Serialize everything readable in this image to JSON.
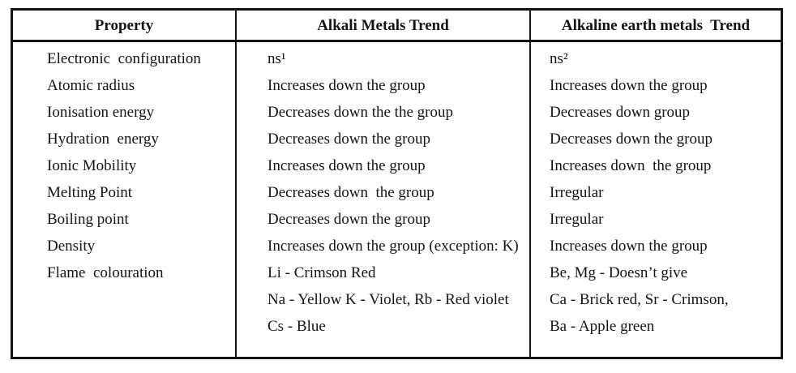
{
  "table": {
    "headers": [
      "Property",
      "Alkali Metals Trend",
      "Alkaline earth metals  Trend"
    ],
    "rows": [
      {
        "property": "Electronic  configuration",
        "alkali": [
          "ns¹"
        ],
        "alkaline": [
          "ns²"
        ]
      },
      {
        "property": "Atomic radius",
        "alkali": [
          "Increases down the group"
        ],
        "alkaline": [
          "Increases down the group"
        ]
      },
      {
        "property": "Ionisation energy",
        "alkali": [
          "Decreases down the the group"
        ],
        "alkaline": [
          "Decreases down group"
        ]
      },
      {
        "property": "Hydration  energy",
        "alkali": [
          "Decreases down the group"
        ],
        "alkaline": [
          "Decreases down the group"
        ]
      },
      {
        "property": "Ionic Mobility",
        "alkali": [
          "Increases down the group"
        ],
        "alkaline": [
          "Increases down  the group"
        ]
      },
      {
        "property": "Melting Point",
        "alkali": [
          "Decreases down  the group"
        ],
        "alkaline": [
          "Irregular"
        ]
      },
      {
        "property": "Boiling point",
        "alkali": [
          "Decreases down the group"
        ],
        "alkaline": [
          "Irregular"
        ]
      },
      {
        "property": "Density",
        "alkali": [
          "Increases down the group (exception: K)"
        ],
        "alkaline": [
          "Increases down the group"
        ]
      },
      {
        "property": "Flame  colouration",
        "alkali": [
          "Li - Crimson Red",
          "Na - Yellow K - Violet, Rb - Red violet",
          "Cs - Blue"
        ],
        "alkaline": [
          "Be, Mg - Doesn’t give",
          "Ca - Brick red, Sr - Crimson,",
          "Ba - Apple green"
        ]
      }
    ]
  },
  "colors": {
    "border": "#141414",
    "text": "#141414",
    "background": "#ffffff"
  }
}
